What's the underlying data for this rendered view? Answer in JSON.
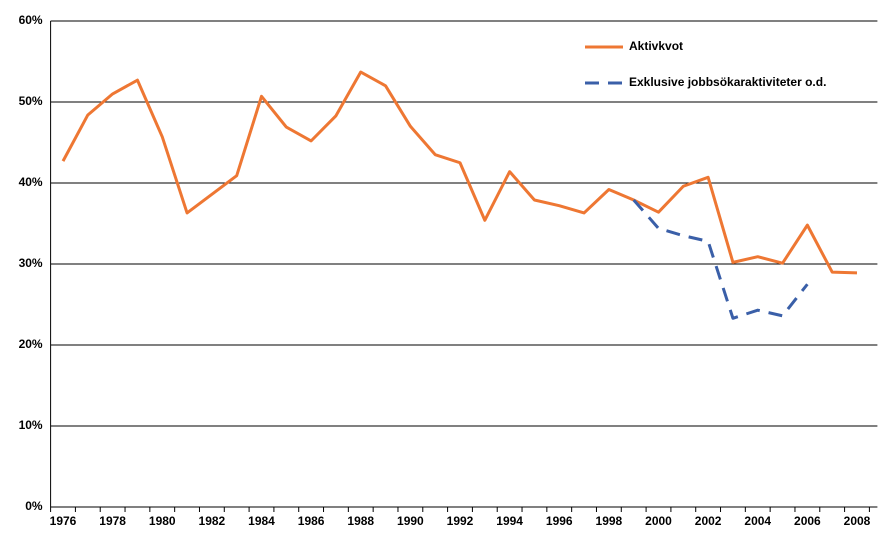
{
  "chart_data": {
    "type": "line",
    "categories": [
      "1976",
      null,
      "1978",
      null,
      "1980",
      null,
      "1982",
      null,
      "1984",
      null,
      "1986",
      null,
      "1988",
      null,
      "1990",
      null,
      "1992",
      null,
      "1994",
      null,
      "1996",
      null,
      "1998",
      null,
      "2000",
      null,
      "2002",
      null,
      "2004",
      null,
      "2006",
      null,
      "2008"
    ],
    "series": [
      {
        "name": "Aktivkvot",
        "color": "#ee7733",
        "dash": false,
        "values": [
          42.7,
          48.4,
          51.0,
          52.7,
          45.7,
          36.3,
          38.6,
          40.9,
          50.7,
          46.9,
          45.2,
          48.3,
          53.7,
          52.0,
          47.0,
          43.5,
          42.5,
          35.4,
          41.4,
          37.9,
          37.2,
          36.3,
          39.2,
          37.9,
          36.4,
          39.6,
          40.7,
          30.2,
          30.9,
          30.1,
          34.8,
          29.0,
          28.9
        ]
      },
      {
        "name": "Exklusive jobbsökaraktiviteter o.d.",
        "color": "#3a5fa8",
        "dash": true,
        "values": [
          null,
          null,
          null,
          null,
          null,
          null,
          null,
          null,
          null,
          null,
          null,
          null,
          null,
          null,
          null,
          null,
          null,
          null,
          null,
          null,
          null,
          null,
          null,
          37.9,
          34.4,
          33.5,
          32.8,
          23.3,
          24.3,
          23.6,
          27.5,
          null,
          null
        ]
      }
    ],
    "ylim": [
      0,
      60
    ],
    "yticks": [
      {
        "value": 0,
        "label": "0%"
      },
      {
        "value": 10,
        "label": "10%"
      },
      {
        "value": 20,
        "label": "20%"
      },
      {
        "value": 30,
        "label": "30%"
      },
      {
        "value": 40,
        "label": "40%"
      },
      {
        "value": 50,
        "label": "50%"
      },
      {
        "value": 60,
        "label": "60%"
      }
    ],
    "grid": true,
    "legend": "top-right"
  }
}
